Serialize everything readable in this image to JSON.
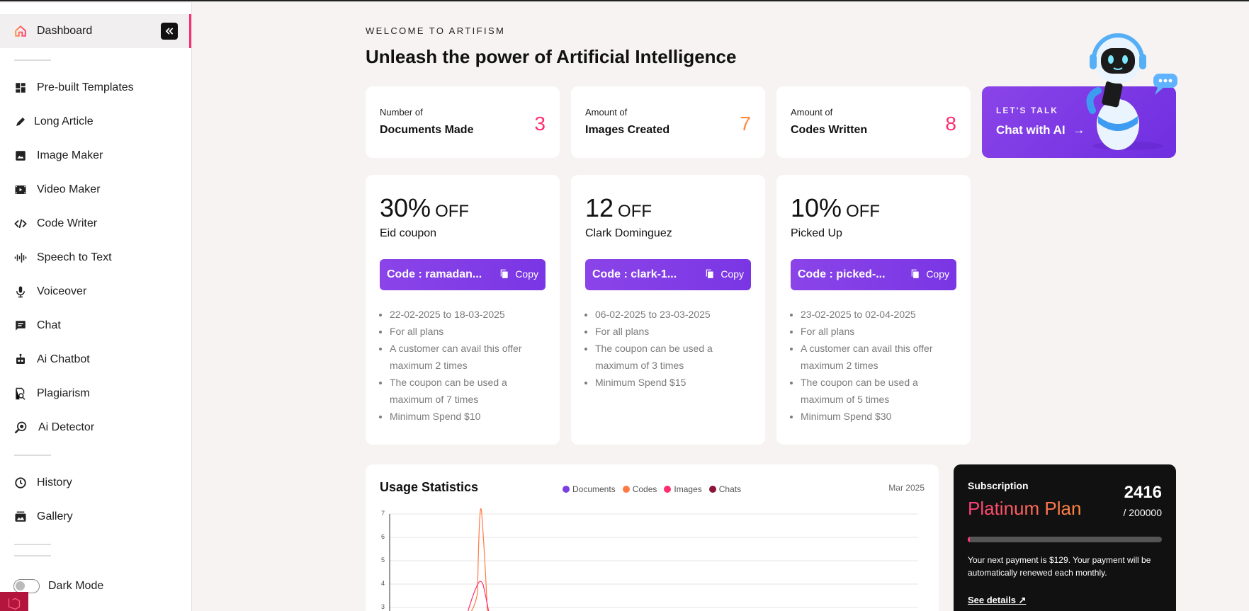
{
  "sidebar": {
    "active": "Dashboard",
    "items": [
      {
        "label": "Dashboard",
        "icon": "home-icon"
      },
      {
        "label": "Pre-built Templates",
        "icon": "grid-icon"
      },
      {
        "label": "Long Article",
        "icon": "pen-icon"
      },
      {
        "label": "Image Maker",
        "icon": "image-icon"
      },
      {
        "label": "Video Maker",
        "icon": "video-icon"
      },
      {
        "label": "Code Writer",
        "icon": "code-icon"
      },
      {
        "label": "Speech to Text",
        "icon": "waveform-icon"
      },
      {
        "label": "Voiceover",
        "icon": "microphone-icon"
      },
      {
        "label": "Chat",
        "icon": "chat-icon"
      },
      {
        "label": "Ai Chatbot",
        "icon": "robot-icon"
      },
      {
        "label": "Plagiarism",
        "icon": "search-doc-icon"
      },
      {
        "label": "Ai Detector",
        "icon": "magnifier-icon"
      },
      {
        "label": "History",
        "icon": "history-icon"
      },
      {
        "label": "Gallery",
        "icon": "gallery-icon"
      }
    ],
    "dark_mode_label": "Dark Mode",
    "dark_mode_on": false
  },
  "header": {
    "eyebrow": "WELCOME TO ARTIFISM",
    "title": "Unleash the power of Artificial Intelligence"
  },
  "stats": [
    {
      "line1": "Number of",
      "line2": "Documents Made",
      "value": "3",
      "color": "#ff2d6f"
    },
    {
      "line1": "Amount of",
      "line2": "Images Created",
      "value": "7",
      "color": "#ff8a3c"
    },
    {
      "line1": "Amount of",
      "line2": "Codes Written",
      "value": "8",
      "color": "#ff2d6f"
    }
  ],
  "chat_card": {
    "eyebrow": "LET'S TALK",
    "label": "Chat with AI"
  },
  "coupons": [
    {
      "amount": "30%",
      "off": "OFF",
      "name": "Eid coupon",
      "code": "Code : ramadan...",
      "copy": "Copy",
      "details": [
        "22-02-2025 to 18-03-2025",
        "For all plans",
        "A customer can avail this offer maximum 2 times",
        "The coupon can be used a maximum of 7 times",
        "Minimum Spend $10"
      ]
    },
    {
      "amount": "12",
      "off": "OFF",
      "name": "Clark Dominguez",
      "code": "Code : clark-1...",
      "copy": "Copy",
      "details": [
        "06-02-2025 to 23-03-2025",
        "For all plans",
        "The coupon can be used a maximum of 3 times",
        "Minimum Spend $15"
      ]
    },
    {
      "amount": "10%",
      "off": "OFF",
      "name": "Picked Up",
      "code": "Code : picked-...",
      "copy": "Copy",
      "details": [
        "23-02-2025 to 02-04-2025",
        "For all plans",
        "A customer can avail this offer maximum 2 times",
        "The coupon can be used a maximum of 5 times",
        "Minimum Spend $30"
      ]
    }
  ],
  "usage": {
    "title": "Usage Statistics",
    "date": "Mar 2025",
    "legend": [
      {
        "name": "Documents",
        "color": "#7b3fe4"
      },
      {
        "name": "Codes",
        "color": "#ff7a45"
      },
      {
        "name": "Images",
        "color": "#ff2d6f"
      },
      {
        "name": "Chats",
        "color": "#8a1538"
      }
    ],
    "y_ticks": [
      "7",
      "6",
      "5",
      "4",
      "3"
    ]
  },
  "subscription": {
    "label": "Subscription",
    "plan": "Platinum Plan",
    "used": "2416",
    "total": "/ 200000",
    "progress": 0.012,
    "description": "Your next payment is $129. Your payment will be automatically renewed each monthly.",
    "link": "See details ↗"
  }
}
